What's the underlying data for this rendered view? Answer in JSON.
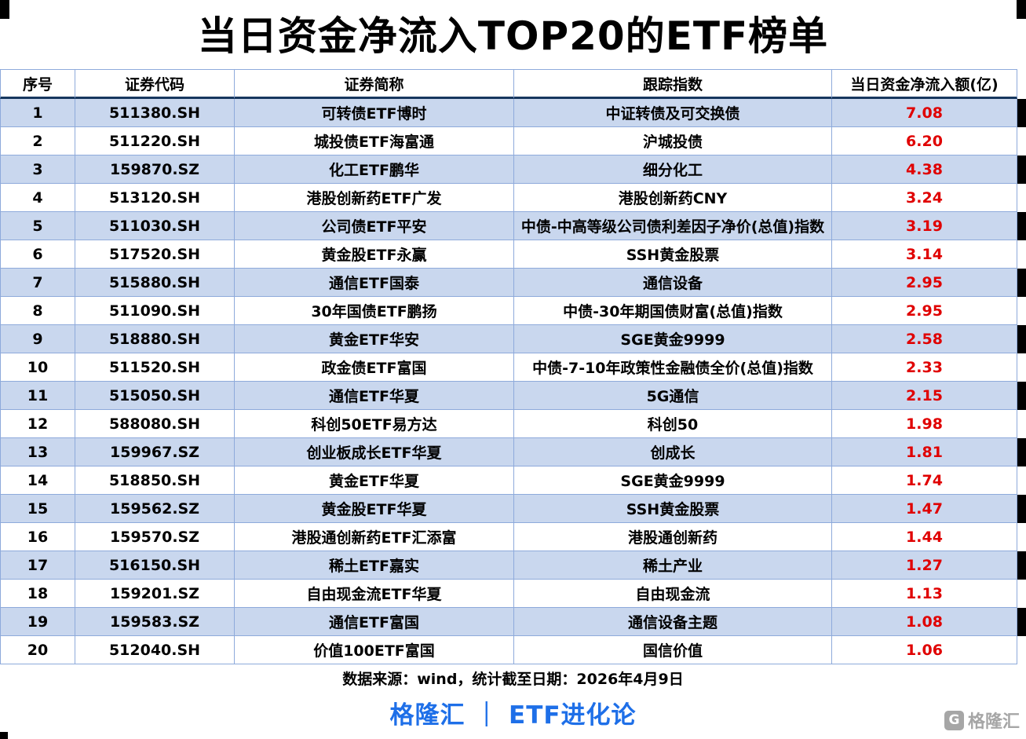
{
  "title": "当日资金净流入TOP20的ETF榜单",
  "chart_data": {
    "type": "table",
    "title": "当日资金净流入TOP20的ETF榜单",
    "columns": [
      "序号",
      "证券代码",
      "证券简称",
      "跟踪指数",
      "当日资金净流入额(亿)"
    ],
    "rows": [
      [
        "1",
        "511380.SH",
        "可转债ETF博时",
        "中证转债及可交换债",
        "7.08"
      ],
      [
        "2",
        "511220.SH",
        "城投债ETF海富通",
        "沪城投债",
        "6.20"
      ],
      [
        "3",
        "159870.SZ",
        "化工ETF鹏华",
        "细分化工",
        "4.38"
      ],
      [
        "4",
        "513120.SH",
        "港股创新药ETF广发",
        "港股创新药CNY",
        "3.24"
      ],
      [
        "5",
        "511030.SH",
        "公司债ETF平安",
        "中债-中高等级公司债利差因子净价(总值)指数",
        "3.19"
      ],
      [
        "6",
        "517520.SH",
        "黄金股ETF永赢",
        "SSH黄金股票",
        "3.14"
      ],
      [
        "7",
        "515880.SH",
        "通信ETF国泰",
        "通信设备",
        "2.95"
      ],
      [
        "8",
        "511090.SH",
        "30年国债ETF鹏扬",
        "中债-30年期国债财富(总值)指数",
        "2.95"
      ],
      [
        "9",
        "518880.SH",
        "黄金ETF华安",
        "SGE黄金9999",
        "2.58"
      ],
      [
        "10",
        "511520.SH",
        "政金债ETF富国",
        "中债-7-10年政策性金融债全价(总值)指数",
        "2.33"
      ],
      [
        "11",
        "515050.SH",
        "通信ETF华夏",
        "5G通信",
        "2.15"
      ],
      [
        "12",
        "588080.SH",
        "科创50ETF易方达",
        "科创50",
        "1.98"
      ],
      [
        "13",
        "159967.SZ",
        "创业板成长ETF华夏",
        "创成长",
        "1.81"
      ],
      [
        "14",
        "518850.SH",
        "黄金ETF华夏",
        "SGE黄金9999",
        "1.74"
      ],
      [
        "15",
        "159562.SZ",
        "黄金股ETF华夏",
        "SSH黄金股票",
        "1.47"
      ],
      [
        "16",
        "159570.SZ",
        "港股通创新药ETF汇添富",
        "港股通创新药",
        "1.44"
      ],
      [
        "17",
        "516150.SH",
        "稀土ETF嘉实",
        "稀土产业",
        "1.27"
      ],
      [
        "18",
        "159201.SZ",
        "自由现金流ETF华夏",
        "自由现金流",
        "1.13"
      ],
      [
        "19",
        "159583.SZ",
        "通信ETF富国",
        "通信设备主题",
        "1.08"
      ],
      [
        "20",
        "512040.SH",
        "价值100ETF富国",
        "国信价值",
        "1.06"
      ]
    ]
  },
  "footer": {
    "source_note": "数据来源：wind，统计截至日期：2026年4月9日",
    "brand_line": "格隆汇 ｜ ETF进化论",
    "logo_text": "格隆汇",
    "logo_letter": "G"
  },
  "colors": {
    "row_band": "#c9d7ee",
    "grid": "#8eaadb",
    "header_rule": "#17375e",
    "value_red": "#e00000",
    "brand_blue": "#1e6fe8",
    "logo_gray": "#a6a6a6"
  }
}
